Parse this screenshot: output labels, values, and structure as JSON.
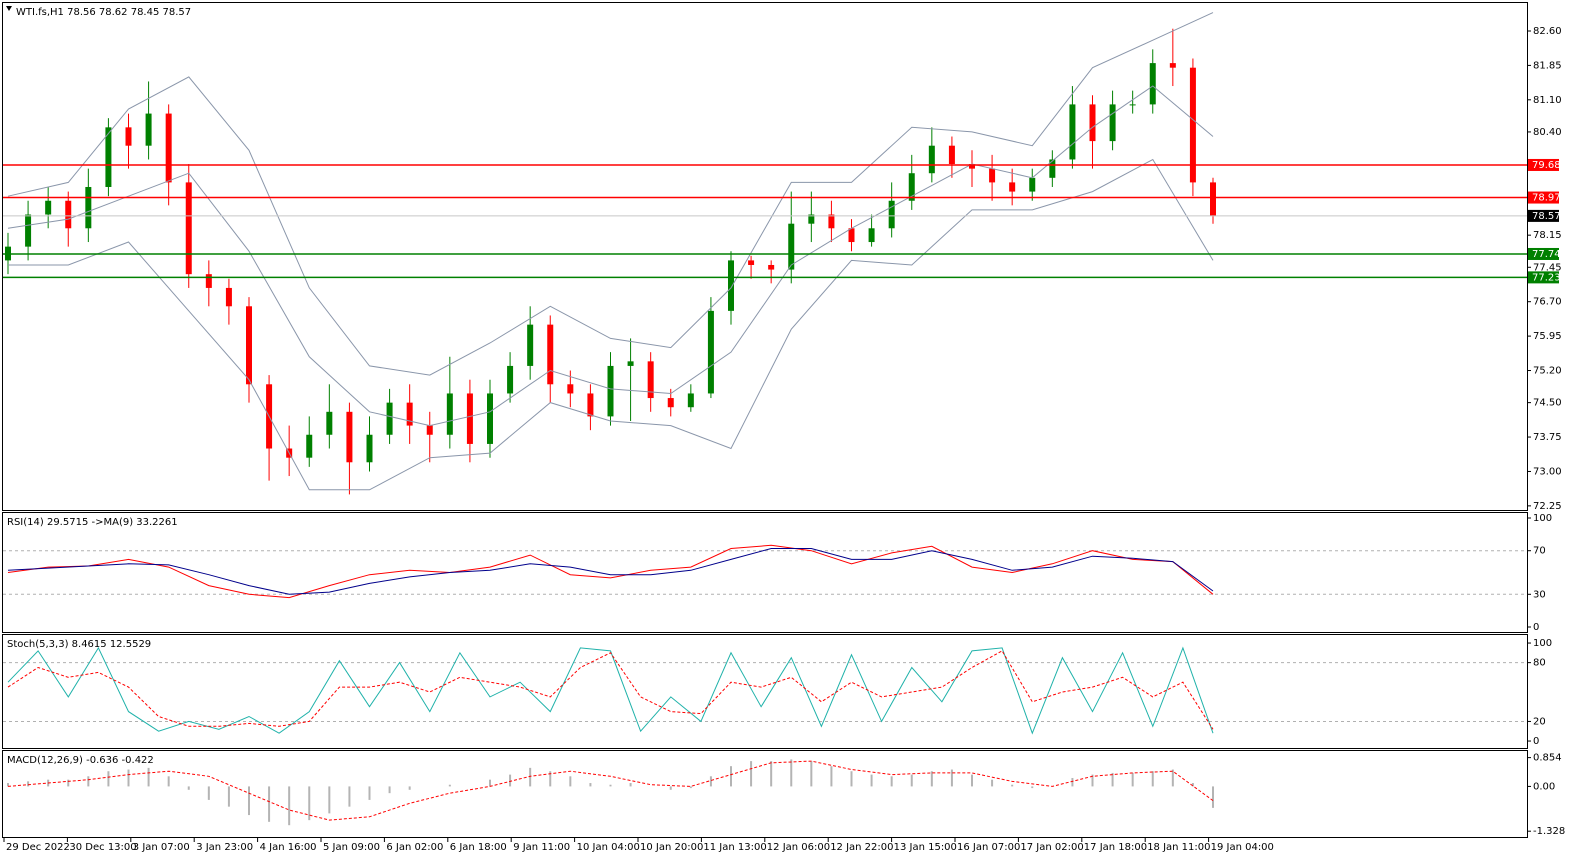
{
  "chart_data": [
    {
      "type": "candlestick",
      "title": "WTI.fs,H1  78.56 78.62 78.45 78.57",
      "up_color": "#008000",
      "down_color": "#ff0000",
      "open": [
        77.6,
        77.9,
        78.6,
        78.9,
        78.3,
        79.2,
        80.5,
        80.1,
        80.8,
        79.3,
        77.3,
        77.0,
        76.6,
        74.9,
        73.5,
        73.3,
        73.8,
        74.3,
        73.2,
        73.8,
        74.5,
        74.0,
        73.8,
        74.7,
        73.6,
        74.7,
        75.3,
        76.2,
        74.9,
        74.7,
        74.2,
        75.3,
        75.4,
        74.6,
        74.4,
        74.7,
        76.5,
        77.6,
        77.5,
        77.4,
        78.4,
        78.6,
        78.3,
        78.0,
        78.3,
        78.9,
        79.5,
        80.1,
        79.7,
        79.6,
        79.3,
        79.1,
        79.4,
        79.8,
        81.0,
        80.2,
        81.0,
        81.0,
        81.9,
        81.8,
        79.3
      ],
      "high": [
        78.2,
        78.9,
        79.2,
        79.1,
        79.6,
        80.7,
        80.8,
        81.5,
        81.0,
        79.7,
        77.6,
        77.2,
        76.8,
        75.1,
        74.0,
        74.2,
        74.9,
        74.5,
        74.2,
        74.8,
        74.9,
        74.3,
        75.5,
        75.0,
        75.0,
        75.6,
        76.6,
        76.4,
        75.2,
        74.9,
        75.6,
        75.9,
        75.6,
        74.8,
        74.9,
        76.8,
        77.8,
        77.7,
        77.6,
        79.1,
        79.1,
        78.9,
        78.5,
        78.6,
        79.3,
        79.9,
        80.5,
        80.3,
        80.0,
        79.9,
        79.6,
        79.6,
        80.0,
        81.4,
        81.2,
        81.3,
        81.3,
        82.2,
        82.65,
        82.0,
        79.4
      ],
      "low": [
        77.3,
        77.6,
        78.3,
        77.9,
        78.0,
        79.0,
        79.6,
        79.8,
        78.8,
        77.0,
        76.6,
        76.2,
        74.5,
        72.8,
        72.9,
        73.1,
        73.5,
        72.5,
        73.0,
        73.6,
        73.6,
        73.2,
        73.5,
        73.2,
        73.3,
        74.5,
        75.0,
        74.5,
        74.4,
        73.9,
        74.0,
        74.1,
        74.3,
        74.2,
        74.3,
        74.6,
        76.2,
        77.2,
        77.1,
        77.1,
        78.0,
        78.0,
        77.8,
        77.9,
        78.1,
        78.7,
        79.3,
        79.4,
        79.2,
        78.9,
        78.8,
        78.9,
        79.2,
        79.6,
        79.6,
        80.0,
        80.8,
        80.8,
        81.4,
        79.0,
        78.4
      ],
      "close": [
        77.9,
        78.6,
        78.9,
        78.3,
        79.2,
        80.5,
        80.1,
        80.8,
        79.3,
        77.3,
        77.0,
        76.6,
        74.9,
        73.5,
        73.3,
        73.8,
        74.3,
        73.2,
        73.8,
        74.5,
        74.0,
        73.8,
        74.7,
        73.6,
        74.7,
        75.3,
        76.2,
        74.9,
        74.7,
        74.2,
        75.3,
        75.4,
        74.6,
        74.4,
        74.7,
        76.5,
        77.6,
        77.5,
        77.4,
        78.4,
        78.6,
        78.3,
        78.0,
        78.3,
        78.9,
        79.5,
        80.1,
        79.7,
        79.6,
        79.3,
        79.1,
        79.4,
        79.8,
        81.0,
        80.2,
        81.0,
        81.0,
        81.9,
        81.8,
        79.3,
        78.57
      ],
      "series": [
        {
          "color": "#8a96aa",
          "values": [
            79.0,
            79.3,
            80.9,
            81.6,
            80.0,
            77.0,
            75.3,
            75.1,
            75.8,
            76.6,
            75.9,
            75.7,
            77.0,
            79.3,
            79.3,
            80.5,
            80.4,
            80.1,
            81.8,
            82.4,
            83.0
          ]
        },
        {
          "color": "#8a96aa",
          "values": [
            78.3,
            78.5,
            79.0,
            79.5,
            77.8,
            75.5,
            74.3,
            74.0,
            74.3,
            75.2,
            74.8,
            74.7,
            75.6,
            77.5,
            78.3,
            79.0,
            79.7,
            79.4,
            80.5,
            81.4,
            80.3
          ]
        },
        {
          "color": "#8a96aa",
          "values": [
            77.5,
            77.5,
            78.0,
            76.5,
            75.0,
            72.6,
            72.6,
            73.3,
            73.4,
            74.5,
            74.1,
            74.0,
            73.5,
            76.1,
            77.6,
            77.5,
            78.7,
            78.7,
            79.1,
            79.8,
            77.6
          ]
        }
      ],
      "ylim": [
        72.16,
        83.21
      ],
      "yticks": [
        {
          "value": 82.6,
          "label": "82.60"
        },
        81.85,
        {
          "value": 81.1,
          "label": "81.10"
        },
        {
          "value": 80.4,
          "label": "80.40"
        },
        78.15,
        77.45,
        {
          "value": 76.7,
          "label": "76.70"
        },
        75.95,
        {
          "value": 75.2,
          "label": "75.20"
        },
        {
          "value": 74.5,
          "label": "74.50"
        },
        73.75,
        {
          "value": 73.0,
          "label": "73.00"
        },
        72.25
      ],
      "levels": [
        {
          "value": 79.68,
          "color": "#ff0000",
          "line_color": "#ff0000"
        },
        {
          "value": 78.97,
          "color": "#ff0000",
          "line_color": "#ff0000"
        },
        {
          "value": 78.57,
          "color": "#000000",
          "line_color": "#c8c8c8"
        },
        {
          "value": 77.74,
          "color": "#008000",
          "line_color": "#008000"
        },
        {
          "value": 77.23,
          "color": "#008000",
          "line_color": "#008000"
        }
      ]
    },
    {
      "type": "line",
      "title": "RSI(14) 29.5715  ->MA(9) 33.2261",
      "series": [
        {
          "color": "#ff0000",
          "values": [
            50,
            55,
            56,
            62,
            55,
            38,
            30,
            27,
            38,
            48,
            52,
            50,
            55,
            66,
            48,
            45,
            52,
            55,
            72,
            75,
            70,
            58,
            68,
            74,
            55,
            50,
            58,
            70,
            62,
            60,
            30
          ]
        },
        {
          "color": "#00008b",
          "values": [
            52,
            54,
            56,
            58,
            57,
            48,
            38,
            30,
            32,
            40,
            46,
            50,
            52,
            58,
            55,
            48,
            48,
            52,
            62,
            72,
            72,
            62,
            62,
            70,
            62,
            52,
            55,
            65,
            63,
            60,
            33
          ]
        }
      ],
      "ylim": [
        -4.6,
        104.6
      ],
      "yticks": [
        100,
        70,
        30,
        0
      ],
      "dashed_levels": [
        70,
        30
      ]
    },
    {
      "type": "line",
      "title": "Stoch(5,3,3) 8.4615 12.5529",
      "series": [
        {
          "color": "#20b2aa",
          "values": [
            60,
            92,
            45,
            95,
            30,
            10,
            20,
            12,
            25,
            8,
            30,
            82,
            35,
            80,
            30,
            90,
            45,
            60,
            30,
            95,
            92,
            10,
            45,
            20,
            90,
            35,
            85,
            15,
            88,
            20,
            75,
            40,
            92,
            95,
            8,
            85,
            30,
            90,
            15,
            95,
            8
          ]
        },
        {
          "color": "#ff0000",
          "dashed": true,
          "values": [
            55,
            75,
            65,
            70,
            55,
            25,
            15,
            15,
            18,
            15,
            20,
            55,
            55,
            60,
            50,
            65,
            60,
            55,
            45,
            75,
            90,
            45,
            30,
            28,
            60,
            55,
            65,
            40,
            60,
            45,
            50,
            55,
            75,
            92,
            40,
            50,
            55,
            65,
            45,
            60,
            12
          ]
        }
      ],
      "ylim": [
        -7.1,
        108.2
      ],
      "yticks": [
        100,
        80,
        20,
        0
      ],
      "dashed_levels": [
        80,
        20
      ]
    },
    {
      "type": "macd",
      "title": "MACD(12,26,9) -0.636 -0.422",
      "histogram": {
        "color": "#b4b4b4",
        "values": [
          0.1,
          0.15,
          0.2,
          0.2,
          0.3,
          0.45,
          0.5,
          0.55,
          0.3,
          -0.1,
          -0.4,
          -0.6,
          -0.85,
          -1.05,
          -1.15,
          -1.0,
          -0.8,
          -0.6,
          -0.4,
          -0.2,
          -0.1,
          0.0,
          0.05,
          0.0,
          0.2,
          0.35,
          0.55,
          0.45,
          0.3,
          0.1,
          0.05,
          0.1,
          0.0,
          -0.1,
          -0.05,
          0.3,
          0.6,
          0.75,
          0.75,
          0.8,
          0.75,
          0.6,
          0.45,
          0.35,
          0.3,
          0.35,
          0.45,
          0.5,
          0.35,
          0.2,
          0.05,
          -0.05,
          0.0,
          0.25,
          0.35,
          0.4,
          0.4,
          0.45,
          0.5,
          0.1,
          -0.636
        ]
      },
      "series": [
        {
          "color": "#ff0000",
          "dashed": true,
          "values": [
            0.0,
            0.1,
            0.2,
            0.35,
            0.45,
            0.3,
            -0.2,
            -0.7,
            -1.0,
            -0.9,
            -0.5,
            -0.2,
            0.0,
            0.3,
            0.45,
            0.3,
            0.05,
            0.0,
            0.35,
            0.7,
            0.75,
            0.5,
            0.35,
            0.4,
            0.4,
            0.15,
            0.0,
            0.3,
            0.4,
            0.45,
            -0.422
          ]
        }
      ],
      "ylim": [
        -1.5,
        1.05
      ],
      "yticks": [
        0.854,
        {
          "value": 0,
          "label": "0.00"
        },
        -1.328
      ]
    }
  ],
  "time_axis": {
    "labels": [
      "29 Dec 2022",
      "30 Dec 13:00",
      "3 Jan 07:00",
      "3 Jan 23:00",
      "4 Jan 16:00",
      "5 Jan 09:00",
      "6 Jan 02:00",
      "6 Jan 18:00",
      "9 Jan 11:00",
      "10 Jan 04:00",
      "10 Jan 20:00",
      "11 Jan 13:00",
      "12 Jan 06:00",
      "12 Jan 22:00",
      "13 Jan 15:00",
      "16 Jan 07:00",
      "17 Jan 02:00",
      "17 Jan 18:00",
      "18 Jan 11:00",
      "19 Jan 04:00"
    ]
  }
}
